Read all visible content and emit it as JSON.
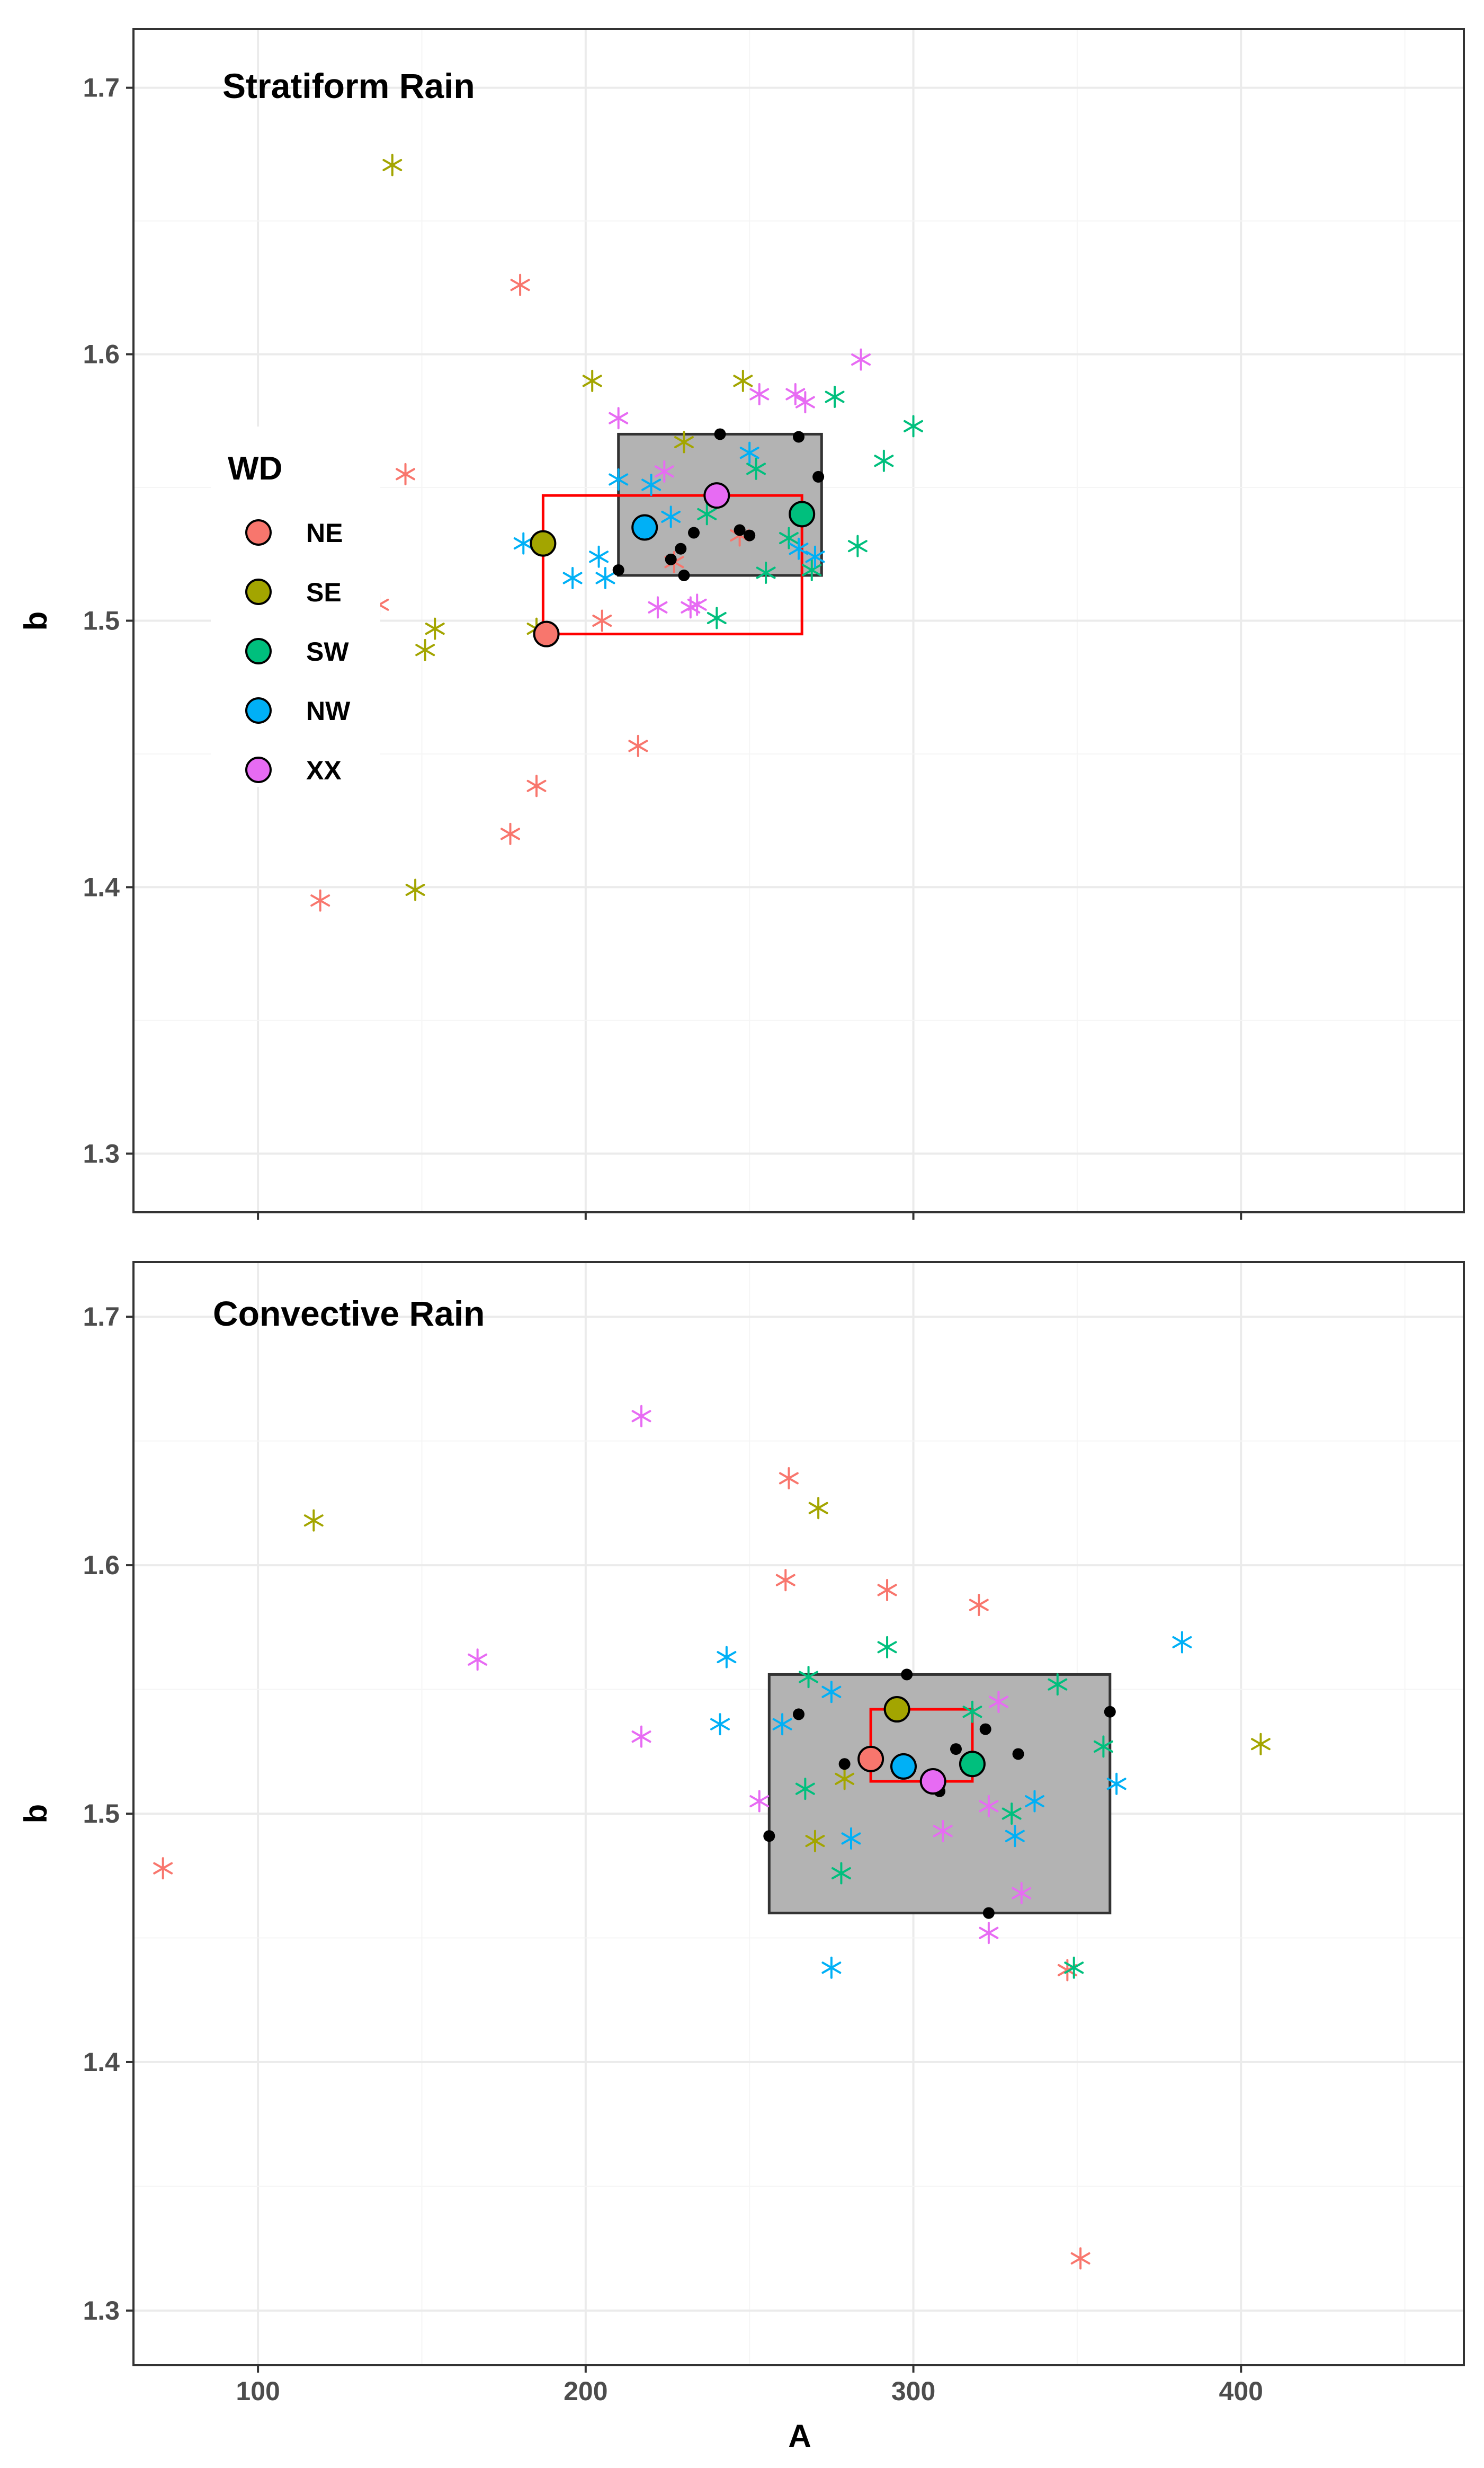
{
  "colors": {
    "NE": "#F8766D",
    "SE": "#A3A500",
    "SW": "#00BF7D",
    "NW": "#00B0F6",
    "XX": "#E76BF3",
    "box_fill": "#B3B3B3",
    "box_stroke": "#333333",
    "range_stroke": "#FF0000",
    "grid_major": "#EBEBEB",
    "grid_minor": "#F5F5F5",
    "panel_border": "#333333",
    "black_point": "#000000"
  },
  "chart_data": {
    "type": "scatter",
    "x_axis": {
      "label": "A",
      "range": [
        62,
        468
      ],
      "ticks": [
        100,
        200,
        300,
        400
      ],
      "tick_labels": [
        "100",
        "200",
        "300",
        "400"
      ]
    },
    "y_axis": {
      "label": "b",
      "range": [
        1.278,
        1.722
      ],
      "ticks": [
        1.3,
        1.4,
        1.5,
        1.6,
        1.7
      ],
      "tick_labels": [
        "1.3",
        "1.4",
        "1.5",
        "1.6",
        "1.7"
      ]
    },
    "legend": {
      "title": "WD",
      "position": "left",
      "entries": [
        {
          "key": "NE",
          "label": "NE"
        },
        {
          "key": "SE",
          "label": "SE"
        },
        {
          "key": "SW",
          "label": "SW"
        },
        {
          "key": "NW",
          "label": "NW"
        },
        {
          "key": "XX",
          "label": "XX"
        }
      ]
    },
    "panels": [
      {
        "title": "Stratiform Rain",
        "x_axis": {
          "range": [
            62,
            468
          ]
        },
        "y_axis": {
          "range": [
            1.278,
            1.722
          ]
        },
        "iqr_box": {
          "x": [
            210,
            272
          ],
          "y": [
            1.517,
            1.57
          ]
        },
        "group_means_range": {
          "x": [
            187,
            266
          ],
          "y": [
            1.495,
            1.547
          ]
        },
        "series": [
          {
            "name": "NE",
            "points": [
              [
                119,
                1.395
              ],
              [
                137,
                1.506
              ],
              [
                145,
                1.555
              ],
              [
                177,
                1.42
              ],
              [
                180,
                1.626
              ],
              [
                185,
                1.438
              ],
              [
                205,
                1.5
              ],
              [
                216,
                1.453
              ],
              [
                227,
                1.522
              ],
              [
                247,
                1.532
              ]
            ]
          },
          {
            "name": "SE",
            "points": [
              [
                141,
                1.671
              ],
              [
                148,
                1.399
              ],
              [
                151,
                1.489
              ],
              [
                154,
                1.497
              ],
              [
                185,
                1.497
              ],
              [
                202,
                1.59
              ],
              [
                230,
                1.567
              ],
              [
                248,
                1.59
              ]
            ]
          },
          {
            "name": "SW",
            "points": [
              [
                237,
                1.54
              ],
              [
                240,
                1.501
              ],
              [
                252,
                1.557
              ],
              [
                255,
                1.518
              ],
              [
                262,
                1.531
              ],
              [
                269,
                1.519
              ],
              [
                276,
                1.584
              ],
              [
                283,
                1.528
              ],
              [
                291,
                1.56
              ],
              [
                300,
                1.573
              ]
            ]
          },
          {
            "name": "NW",
            "points": [
              [
                181,
                1.529
              ],
              [
                196,
                1.516
              ],
              [
                204,
                1.524
              ],
              [
                206,
                1.516
              ],
              [
                210,
                1.553
              ],
              [
                220,
                1.551
              ],
              [
                226,
                1.539
              ],
              [
                250,
                1.563
              ],
              [
                265,
                1.527
              ],
              [
                270,
                1.524
              ]
            ]
          },
          {
            "name": "XX",
            "points": [
              [
                210,
                1.576
              ],
              [
                222,
                1.505
              ],
              [
                224,
                1.556
              ],
              [
                232,
                1.505
              ],
              [
                234,
                1.506
              ],
              [
                253,
                1.585
              ],
              [
                264,
                1.585
              ],
              [
                267,
                1.582
              ],
              [
                284,
                1.598
              ]
            ]
          }
        ],
        "means": [
          {
            "name": "NE",
            "x": 188,
            "y": 1.495
          },
          {
            "name": "SE",
            "x": 187,
            "y": 1.529
          },
          {
            "name": "SW",
            "x": 266,
            "y": 1.54
          },
          {
            "name": "NW",
            "x": 218,
            "y": 1.535
          },
          {
            "name": "XX",
            "x": 240,
            "y": 1.547
          }
        ],
        "black_points": [
          [
            210,
            1.519
          ],
          [
            226,
            1.523
          ],
          [
            229,
            1.527
          ],
          [
            230,
            1.517
          ],
          [
            233,
            1.533
          ],
          [
            241,
            1.57
          ],
          [
            247,
            1.534
          ],
          [
            250,
            1.532
          ],
          [
            265,
            1.569
          ],
          [
            271,
            1.554
          ]
        ]
      },
      {
        "title": "Convective Rain",
        "x_axis": {
          "range": [
            62,
            468
          ]
        },
        "y_axis": {
          "range": [
            1.278,
            1.722
          ]
        },
        "iqr_box": {
          "x": [
            256,
            360
          ],
          "y": [
            1.46,
            1.556
          ]
        },
        "group_means_range": {
          "x": [
            287,
            318
          ],
          "y": [
            1.513,
            1.542
          ]
        },
        "series": [
          {
            "name": "NE",
            "points": [
              [
                71,
                1.478
              ],
              [
                261,
                1.594
              ],
              [
                262,
                1.635
              ],
              [
                292,
                1.59
              ],
              [
                320,
                1.584
              ],
              [
                347,
                1.437
              ],
              [
                351,
                1.321
              ]
            ]
          },
          {
            "name": "SE",
            "points": [
              [
                117,
                1.618
              ],
              [
                270,
                1.489
              ],
              [
                271,
                1.623
              ],
              [
                279,
                1.514
              ],
              [
                406,
                1.528
              ]
            ]
          },
          {
            "name": "SW",
            "points": [
              [
                267,
                1.51
              ],
              [
                268,
                1.555
              ],
              [
                278,
                1.476
              ],
              [
                292,
                1.567
              ],
              [
                318,
                1.541
              ],
              [
                330,
                1.5
              ],
              [
                344,
                1.552
              ],
              [
                349,
                1.438
              ],
              [
                358,
                1.527
              ]
            ]
          },
          {
            "name": "NW",
            "points": [
              [
                241,
                1.536
              ],
              [
                243,
                1.563
              ],
              [
                260,
                1.536
              ],
              [
                275,
                1.438
              ],
              [
                275,
                1.549
              ],
              [
                281,
                1.49
              ],
              [
                331,
                1.491
              ],
              [
                337,
                1.505
              ],
              [
                362,
                1.512
              ],
              [
                382,
                1.569
              ]
            ]
          },
          {
            "name": "XX",
            "points": [
              [
                167,
                1.562
              ],
              [
                217,
                1.531
              ],
              [
                217,
                1.66
              ],
              [
                253,
                1.505
              ],
              [
                309,
                1.493
              ],
              [
                323,
                1.452
              ],
              [
                323,
                1.503
              ],
              [
                326,
                1.545
              ],
              [
                333,
                1.468
              ]
            ]
          }
        ],
        "means": [
          {
            "name": "NE",
            "x": 287,
            "y": 1.522
          },
          {
            "name": "SE",
            "x": 295,
            "y": 1.542
          },
          {
            "name": "SW",
            "x": 318,
            "y": 1.52
          },
          {
            "name": "NW",
            "x": 297,
            "y": 1.519
          },
          {
            "name": "XX",
            "x": 306,
            "y": 1.513
          }
        ],
        "black_points": [
          [
            256,
            1.491
          ],
          [
            265,
            1.54
          ],
          [
            279,
            1.52
          ],
          [
            298,
            1.556
          ],
          [
            308,
            1.509
          ],
          [
            313,
            1.526
          ],
          [
            322,
            1.534
          ],
          [
            323,
            1.46
          ],
          [
            332,
            1.524
          ],
          [
            360,
            1.541
          ]
        ]
      }
    ]
  }
}
